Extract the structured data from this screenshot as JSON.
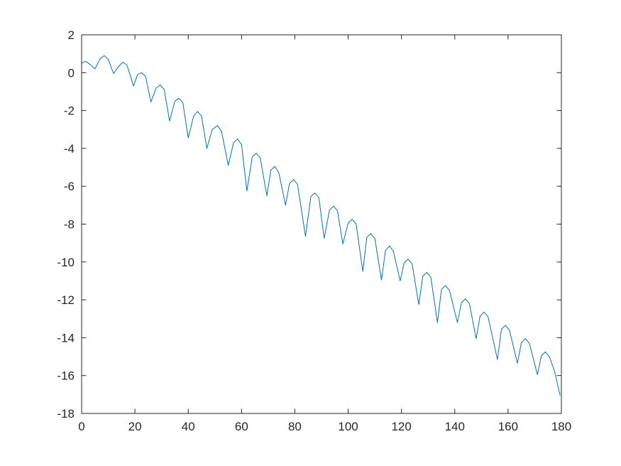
{
  "chart_data": {
    "type": "line",
    "title": "",
    "xlabel": "",
    "ylabel": "",
    "xlim": [
      0,
      180
    ],
    "ylim": [
      -18,
      2
    ],
    "xticks": [
      0,
      20,
      40,
      60,
      80,
      100,
      120,
      140,
      160,
      180
    ],
    "yticks": [
      2,
      0,
      -2,
      -4,
      -6,
      -8,
      -10,
      -12,
      -14,
      -16,
      -18
    ],
    "grid": false,
    "legend": "none",
    "series": [
      {
        "color": "#0072BD",
        "x": [
          0,
          1.5,
          3,
          5,
          7,
          8.5,
          10,
          12,
          14,
          15.5,
          17,
          19.5,
          21,
          22.5,
          24,
          26,
          28,
          29.5,
          31,
          33,
          35,
          36.5,
          38,
          40,
          42,
          43.5,
          45,
          47,
          49,
          51,
          52.5,
          55,
          57,
          58.5,
          60,
          62,
          64,
          65.5,
          67,
          69.5,
          71,
          72.5,
          74,
          76.5,
          78,
          79.5,
          81,
          84,
          86,
          87.5,
          89,
          91,
          93,
          94.5,
          96,
          98,
          100,
          101.5,
          103,
          105.5,
          107,
          108.5,
          110,
          112.5,
          114,
          115.5,
          117,
          119.5,
          121,
          122.5,
          124,
          126.5,
          128,
          129.5,
          131,
          133.5,
          135,
          136.5,
          138,
          141,
          142.5,
          144,
          145.5,
          148,
          149.5,
          151,
          152.5,
          156,
          157.5,
          159,
          160.5,
          163.5,
          165,
          166.5,
          168,
          171,
          172.5,
          174,
          175.5,
          177.5,
          179.5
        ],
        "y": [
          0.5,
          0.6,
          0.45,
          0.2,
          0.75,
          0.9,
          0.7,
          -0.05,
          0.35,
          0.55,
          0.4,
          -0.7,
          -0.1,
          0.0,
          -0.2,
          -1.55,
          -0.8,
          -0.65,
          -0.9,
          -2.55,
          -1.5,
          -1.35,
          -1.6,
          -3.45,
          -2.3,
          -2.05,
          -2.3,
          -4.0,
          -3.0,
          -2.8,
          -3.1,
          -4.9,
          -3.7,
          -3.5,
          -3.8,
          -6.25,
          -4.45,
          -4.25,
          -4.5,
          -6.5,
          -5.15,
          -4.95,
          -5.3,
          -7.0,
          -5.85,
          -5.65,
          -5.9,
          -8.65,
          -6.55,
          -6.35,
          -6.6,
          -8.75,
          -7.25,
          -7.05,
          -7.3,
          -9.05,
          -7.95,
          -7.75,
          -8.0,
          -10.5,
          -8.7,
          -8.5,
          -8.75,
          -10.95,
          -9.4,
          -9.15,
          -9.45,
          -11.0,
          -10.05,
          -9.85,
          -10.1,
          -12.25,
          -10.75,
          -10.55,
          -10.8,
          -13.2,
          -11.45,
          -11.25,
          -11.5,
          -13.2,
          -12.15,
          -11.95,
          -12.2,
          -14.05,
          -12.85,
          -12.65,
          -12.9,
          -15.15,
          -13.55,
          -13.35,
          -13.6,
          -15.35,
          -14.25,
          -14.05,
          -14.3,
          -15.95,
          -14.95,
          -14.75,
          -15.0,
          -15.8,
          -17.05
        ]
      }
    ]
  }
}
